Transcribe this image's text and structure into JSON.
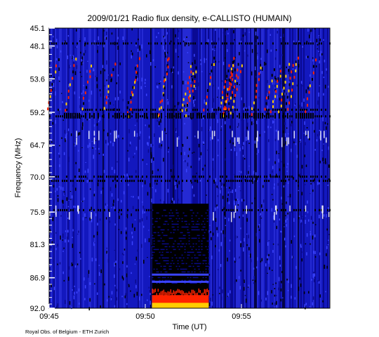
{
  "chart_data": {
    "type": "heatmap",
    "title": "2009/01/21  Radio flux density, e-CALLISTO (HUMAIN)",
    "xlabel": "Time (UT)",
    "ylabel": "Frequency (MHz)",
    "x_ticks": [
      "09:45",
      "09:50",
      "09:55"
    ],
    "x_tick_minutes": [
      0,
      5,
      10
    ],
    "x_range_minutes": [
      0,
      14.6
    ],
    "y_ticks": [
      45.1,
      48.1,
      53.6,
      59.2,
      64.7,
      70.0,
      75.9,
      81.3,
      86.9,
      92.0
    ],
    "y_ticks_text": [
      "45.1",
      "48.1",
      "53.6",
      "59.2",
      "64.7",
      "70.0",
      "75.9",
      "81.3",
      "86.9",
      "92.0"
    ],
    "y_range": [
      45.1,
      92.0
    ],
    "y_inverted": true,
    "colormap": [
      "#000000",
      "#0a0a8c",
      "#1a22d8",
      "#3b44ff",
      "#ff2200",
      "#ffcc00",
      "#ffffff"
    ],
    "credit": "Royal Obs. of Belgium - ETH Zurich"
  }
}
